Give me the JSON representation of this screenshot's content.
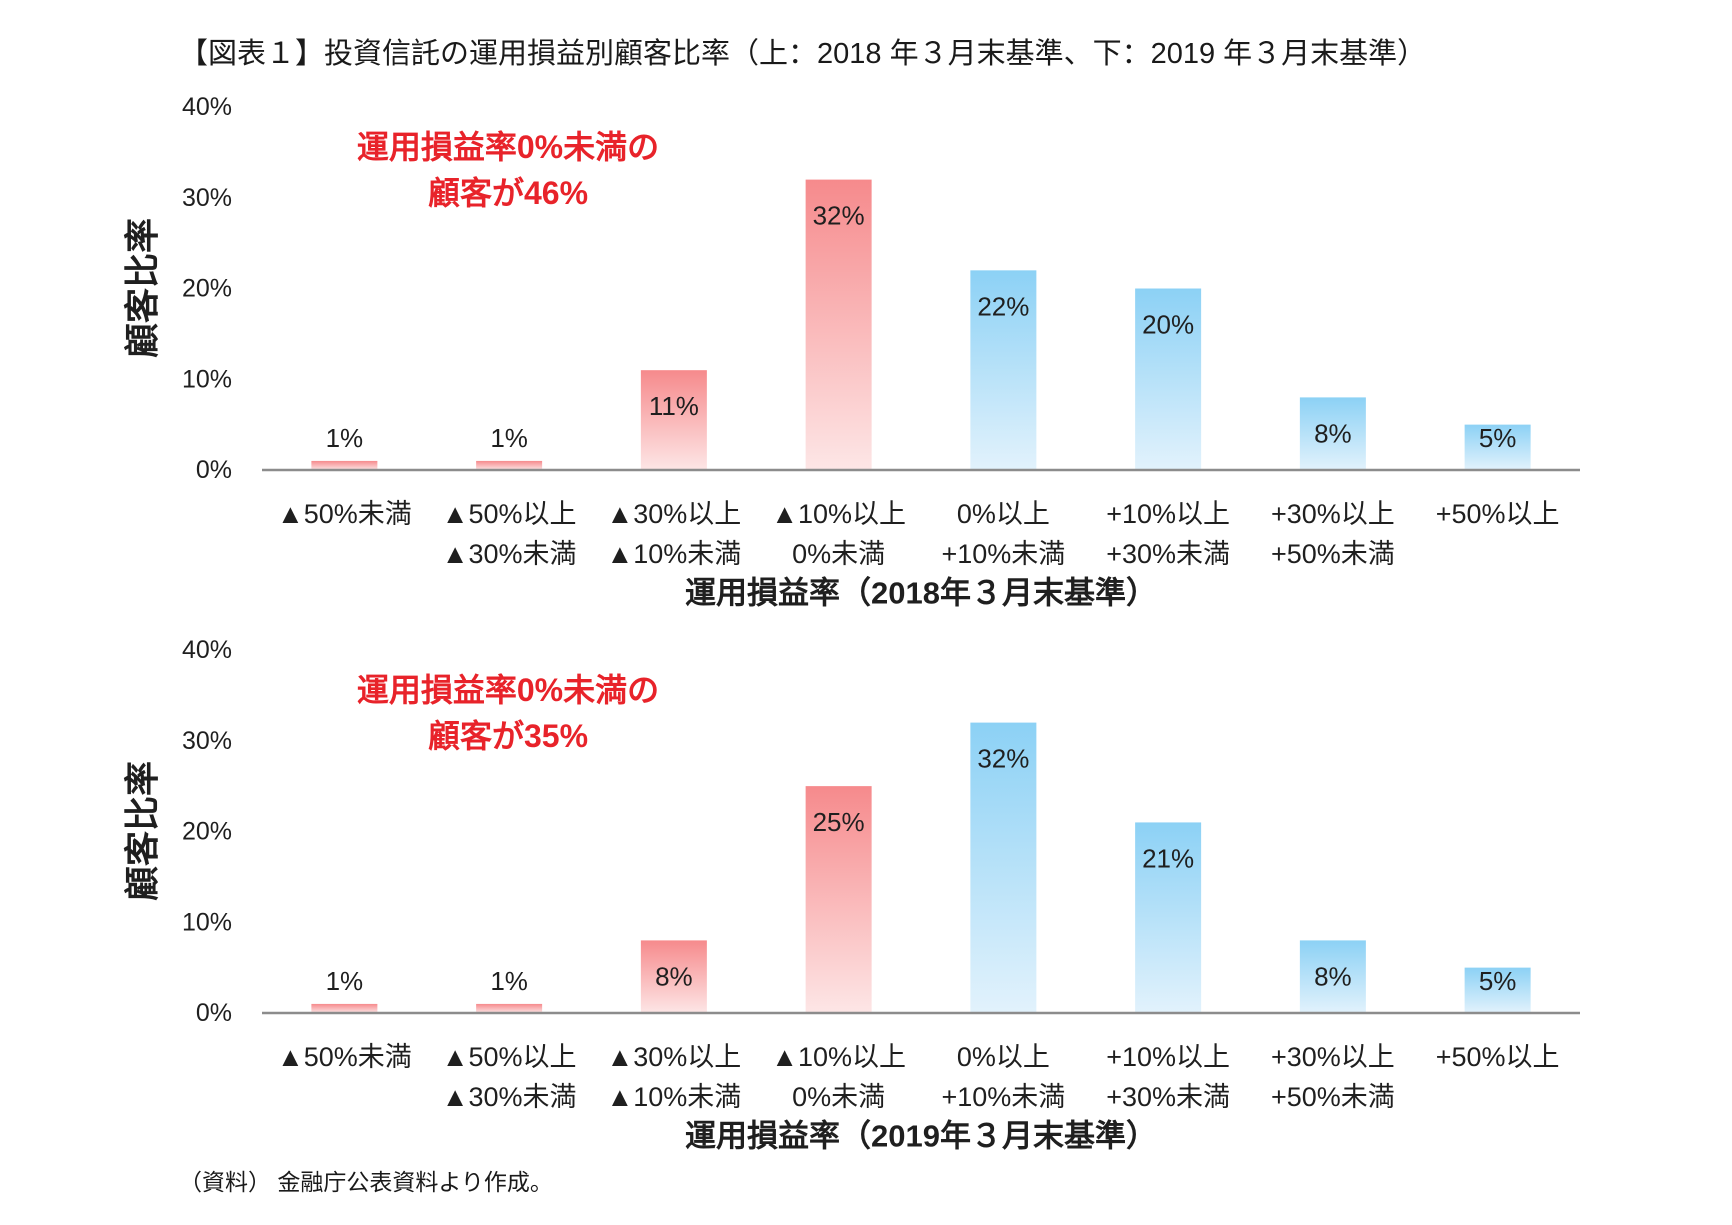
{
  "title": "【図表１】投資信託の運用損益別顧客比率（上：2018 年３月末基準、下：2019 年３月末基準）",
  "source_note": "（資料） 金融庁公表資料より作成。",
  "colors": {
    "annotation": "#e8232a",
    "axis_line": "#8c8c8c"
  },
  "chart_data": [
    {
      "type": "bar",
      "categories": [
        [
          "▲50%未満"
        ],
        [
          "▲50%以上",
          "▲30%未満"
        ],
        [
          "▲30%以上",
          "▲10%未満"
        ],
        [
          "▲10%以上",
          "0%未満"
        ],
        [
          "0%以上",
          "+10%未満"
        ],
        [
          "+10%以上",
          "+30%未満"
        ],
        [
          "+30%以上",
          "+50%未満"
        ],
        [
          "+50%以上"
        ]
      ],
      "values": [
        1,
        1,
        11,
        32,
        22,
        20,
        8,
        5
      ],
      "data_labels": [
        "1%",
        "1%",
        "11%",
        "32%",
        "22%",
        "20%",
        "8%",
        "5%"
      ],
      "bar_colors": [
        [
          "#f68a8c",
          "#fde6e6"
        ],
        [
          "#f68a8c",
          "#fde6e6"
        ],
        [
          "#f68a8c",
          "#fde6e6"
        ],
        [
          "#f68a8c",
          "#fde6e6"
        ],
        [
          "#8cd1f5",
          "#e2f2fc"
        ],
        [
          "#8cd1f5",
          "#e2f2fc"
        ],
        [
          "#8cd1f5",
          "#e2f2fc"
        ],
        [
          "#8cd1f5",
          "#e2f2fc"
        ]
      ],
      "xlabel": "運用損益率（2018年３月末基準）",
      "ylabel": "顧客比率",
      "ylim": [
        0,
        40
      ],
      "yticks": [
        0,
        10,
        20,
        30,
        40
      ],
      "ytick_labels": [
        "0%",
        "10%",
        "20%",
        "30%",
        "40%"
      ],
      "grid": false,
      "legend": false,
      "annotation": [
        "運用損益率0%未満の",
        "顧客が46%"
      ]
    },
    {
      "type": "bar",
      "categories": [
        [
          "▲50%未満"
        ],
        [
          "▲50%以上",
          "▲30%未満"
        ],
        [
          "▲30%以上",
          "▲10%未満"
        ],
        [
          "▲10%以上",
          "0%未満"
        ],
        [
          "0%以上",
          "+10%未満"
        ],
        [
          "+10%以上",
          "+30%未満"
        ],
        [
          "+30%以上",
          "+50%未満"
        ],
        [
          "+50%以上"
        ]
      ],
      "values": [
        1,
        1,
        8,
        25,
        32,
        21,
        8,
        5
      ],
      "data_labels": [
        "1%",
        "1%",
        "8%",
        "25%",
        "32%",
        "21%",
        "8%",
        "5%"
      ],
      "bar_colors": [
        [
          "#f68a8c",
          "#fde6e6"
        ],
        [
          "#f68a8c",
          "#fde6e6"
        ],
        [
          "#f68a8c",
          "#fde6e6"
        ],
        [
          "#f68a8c",
          "#fde6e6"
        ],
        [
          "#8cd1f5",
          "#e2f2fc"
        ],
        [
          "#8cd1f5",
          "#e2f2fc"
        ],
        [
          "#8cd1f5",
          "#e2f2fc"
        ],
        [
          "#8cd1f5",
          "#e2f2fc"
        ]
      ],
      "xlabel": "運用損益率（2019年３月末基準）",
      "ylabel": "顧客比率",
      "ylim": [
        0,
        40
      ],
      "yticks": [
        0,
        10,
        20,
        30,
        40
      ],
      "ytick_labels": [
        "0%",
        "10%",
        "20%",
        "30%",
        "40%"
      ],
      "grid": false,
      "legend": false,
      "annotation": [
        "運用損益率0%未満の",
        "顧客が35%"
      ]
    }
  ]
}
